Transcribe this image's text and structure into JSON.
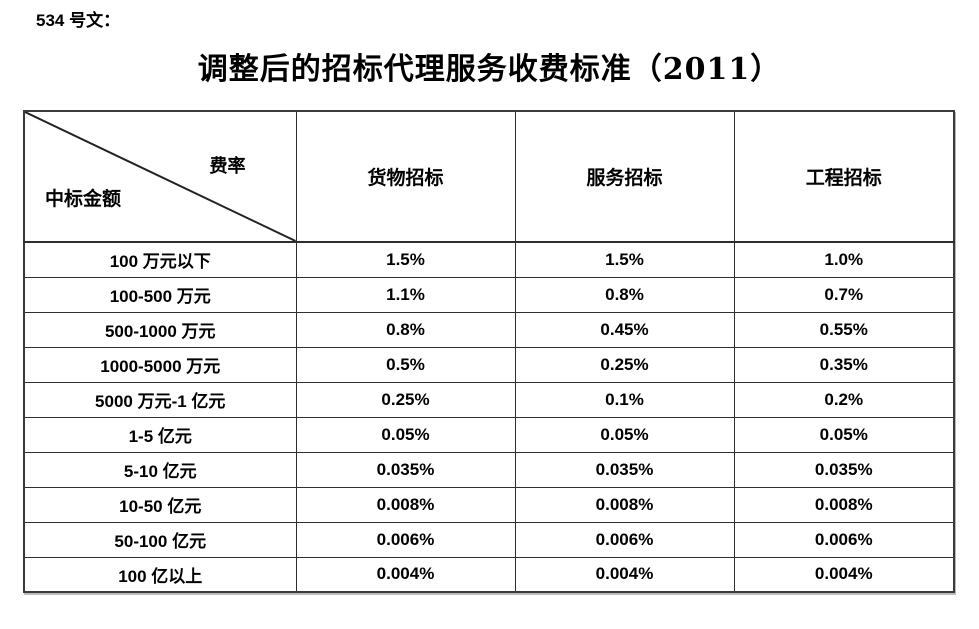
{
  "page": {
    "doc_label": "534 号文：",
    "title": "调整后的招标代理服务收费标准（2011）"
  },
  "table": {
    "corner": {
      "top_right": "费率",
      "bottom_left": "中标金额"
    },
    "columns": [
      "货物招标",
      "服务招标",
      "工程招标"
    ],
    "rows": [
      {
        "amount": "100 万元以下",
        "values": [
          "1.5%",
          "1.5%",
          "1.0%"
        ]
      },
      {
        "amount": "100-500 万元",
        "values": [
          "1.1%",
          "0.8%",
          "0.7%"
        ]
      },
      {
        "amount": "500-1000 万元",
        "values": [
          "0.8%",
          "0.45%",
          "0.55%"
        ]
      },
      {
        "amount": "1000-5000 万元",
        "values": [
          "0.5%",
          "0.25%",
          "0.35%"
        ]
      },
      {
        "amount": "5000 万元-1 亿元",
        "values": [
          "0.25%",
          "0.1%",
          "0.2%"
        ]
      },
      {
        "amount": "1-5 亿元",
        "values": [
          "0.05%",
          "0.05%",
          "0.05%"
        ]
      },
      {
        "amount": "5-10 亿元",
        "values": [
          "0.035%",
          "0.035%",
          "0.035%"
        ]
      },
      {
        "amount": "10-50 亿元",
        "values": [
          "0.008%",
          "0.008%",
          "0.008%"
        ]
      },
      {
        "amount": "50-100 亿元",
        "values": [
          "0.006%",
          "0.006%",
          "0.006%"
        ]
      },
      {
        "amount": "100 亿以上",
        "values": [
          "0.004%",
          "0.004%",
          "0.004%"
        ]
      }
    ]
  },
  "colors": {
    "background": "#ffffff",
    "text": "#000000",
    "border": "#333333"
  }
}
